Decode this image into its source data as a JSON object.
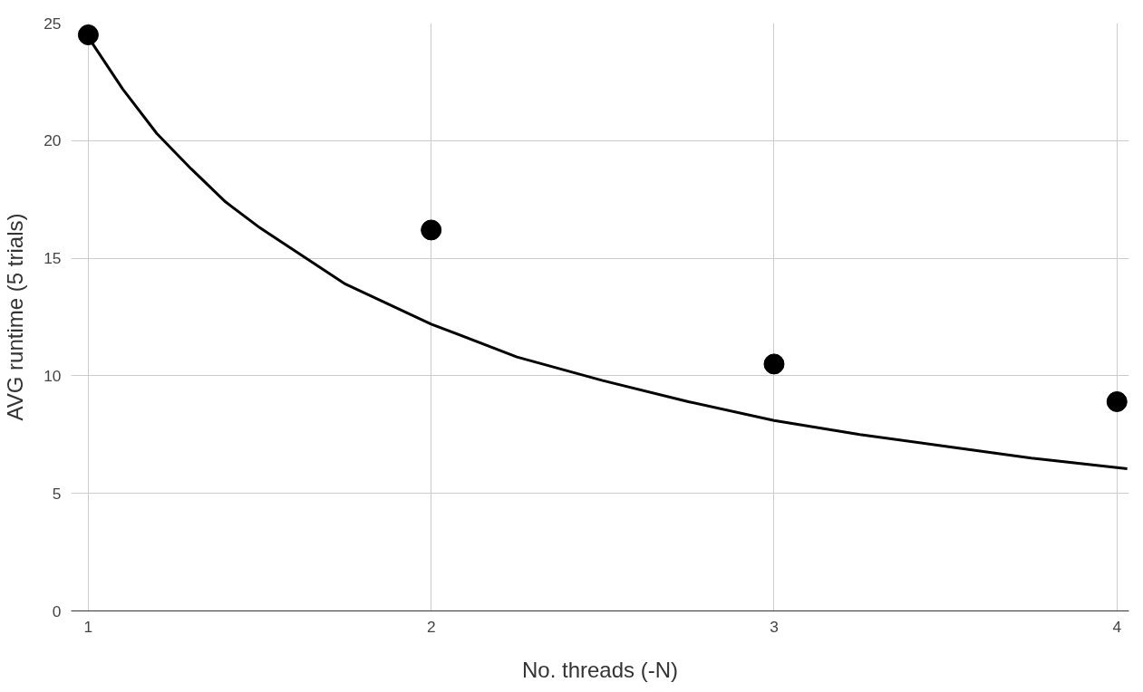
{
  "chart_data": {
    "type": "scatter",
    "xlabel": "No. threads (-N)",
    "ylabel": "AVG runtime (5 trials)",
    "xlim": [
      0.95,
      4.035
    ],
    "ylim": [
      0,
      25
    ],
    "xticks": [
      1,
      2,
      3,
      4
    ],
    "yticks": [
      0,
      5,
      10,
      15,
      20,
      25
    ],
    "grid": true,
    "series": [
      {
        "marker": "circle",
        "color": "#000000",
        "x": [
          1,
          2,
          3,
          4
        ],
        "values": [
          24.5,
          16.2,
          10.5,
          8.9
        ]
      },
      {
        "type": "line",
        "color": "#000000",
        "line_style": "solid",
        "x": [
          1,
          1.1,
          1.2,
          1.3,
          1.4,
          1.5,
          1.75,
          2,
          2.25,
          2.5,
          2.75,
          3,
          3.25,
          3.5,
          3.75,
          4,
          4.03
        ],
        "values": [
          24.4,
          22.2,
          20.3,
          18.8,
          17.4,
          16.3,
          13.9,
          12.2,
          10.8,
          9.8,
          8.9,
          8.1,
          7.5,
          7.0,
          6.5,
          6.1,
          6.05
        ]
      }
    ]
  }
}
